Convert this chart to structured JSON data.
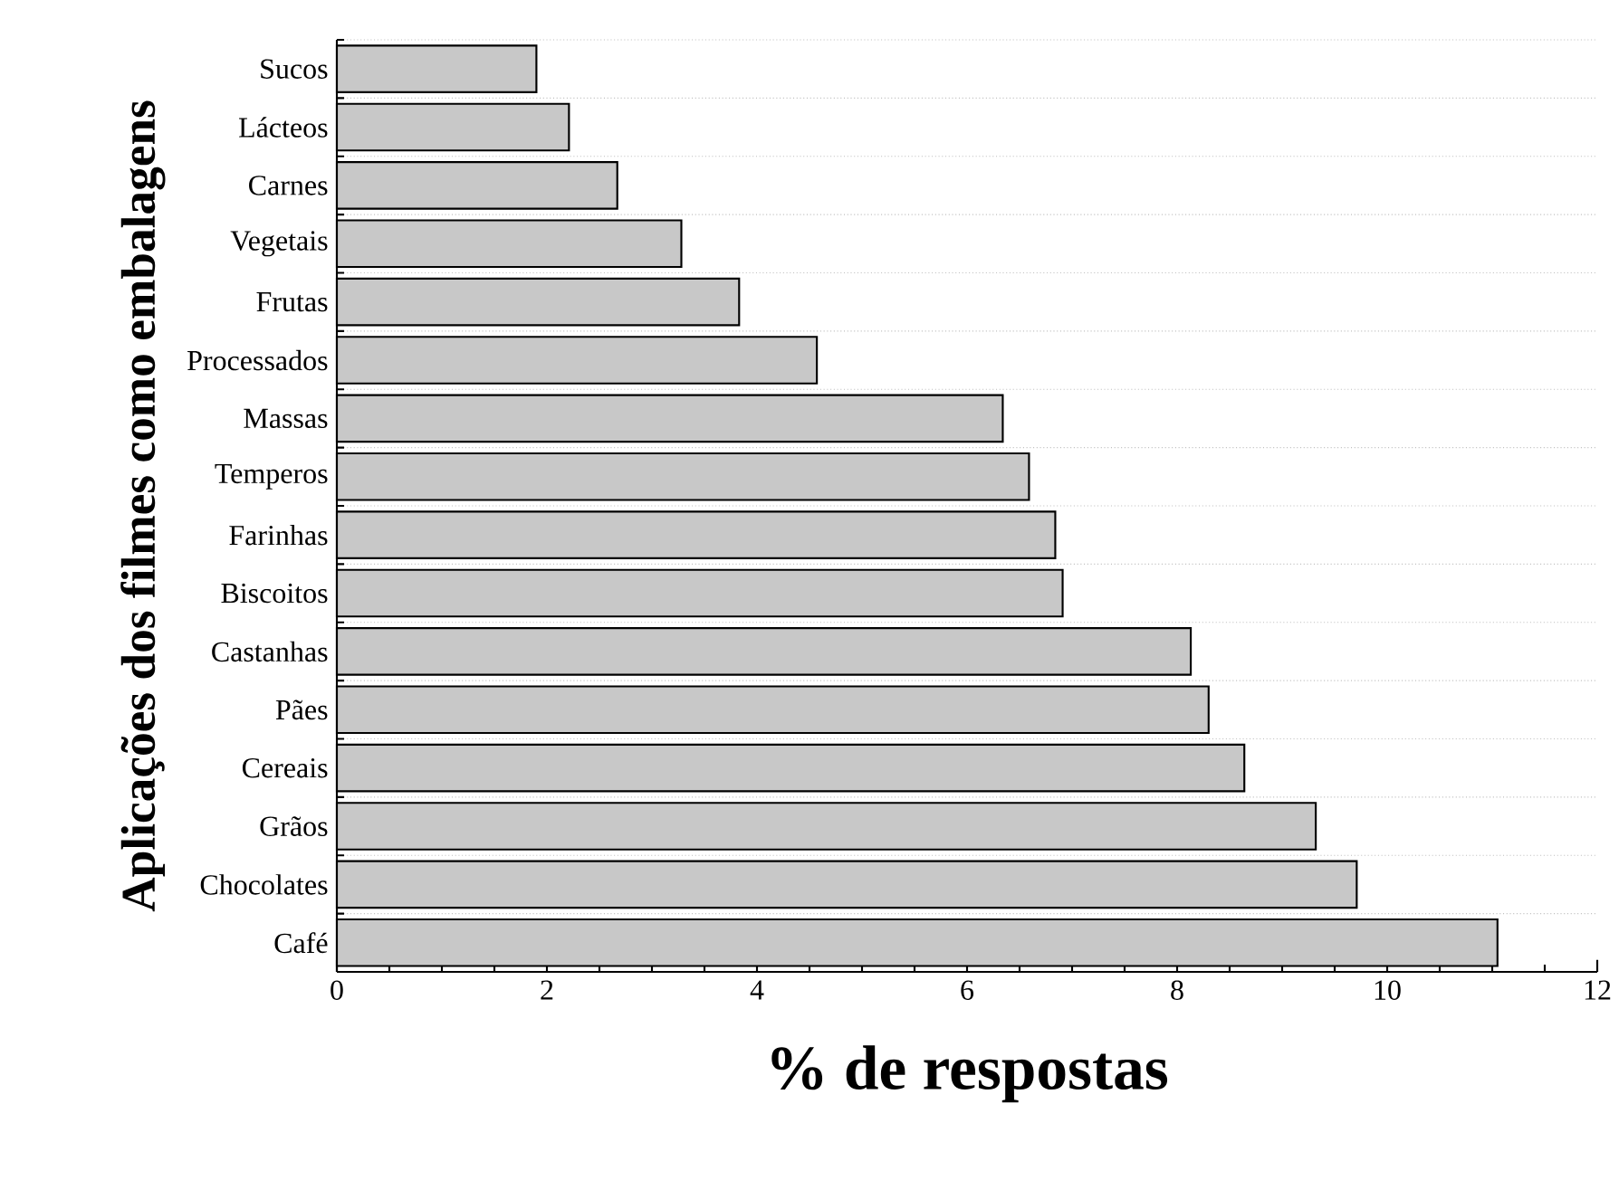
{
  "chart_data": {
    "type": "bar",
    "orientation": "horizontal",
    "categories": [
      "Sucos",
      "Lácteos",
      "Carnes",
      "Vegetais",
      "Frutas",
      "Processados",
      "Massas",
      "Temperos",
      "Farinhas",
      "Biscoitos",
      "Castanhas",
      "Pães",
      "Cereais",
      "Grãos",
      "Chocolates",
      "Café"
    ],
    "values": [
      1.9,
      2.21,
      2.67,
      3.28,
      3.83,
      4.57,
      6.34,
      6.59,
      6.84,
      6.91,
      8.13,
      8.3,
      8.64,
      9.32,
      9.71,
      11.05
    ],
    "color": "#c8c8c8",
    "xlim": [
      0,
      12
    ],
    "xticks": [
      0,
      2,
      4,
      6,
      8,
      10,
      12
    ],
    "xlabel": "% de respostas",
    "ylabel": "Aplicações dos filmes como embalagens",
    "grid": "y"
  }
}
